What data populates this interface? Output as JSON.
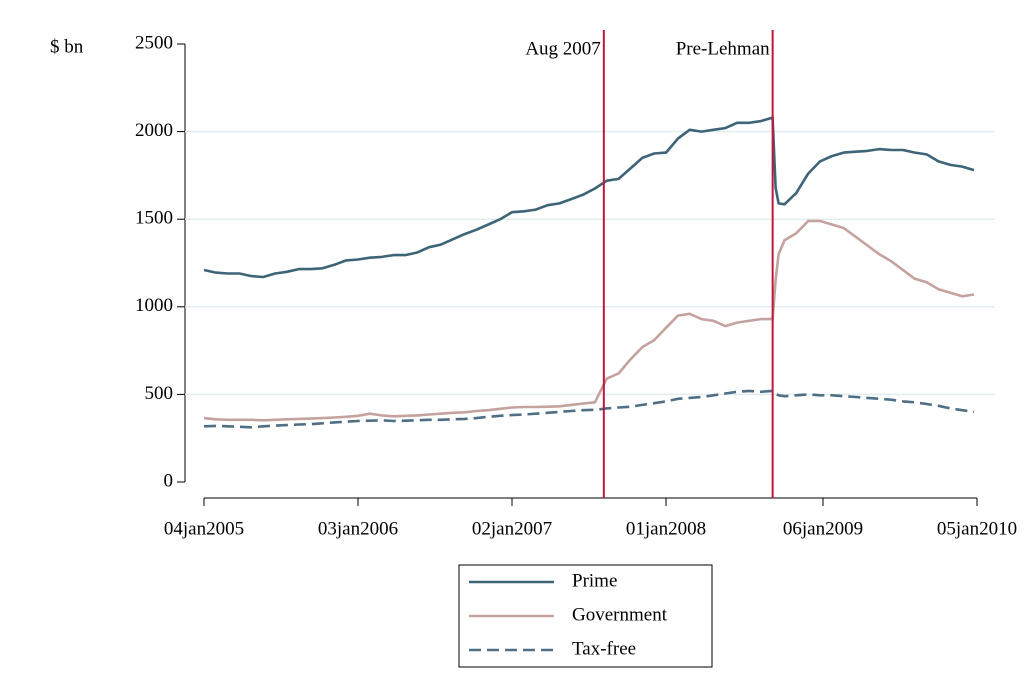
{
  "chart_data": {
    "type": "line",
    "ylabel": "$ bn",
    "x": [
      "2005-01-04",
      "2005-02-01",
      "2005-03-01",
      "2005-03-29",
      "2005-04-26",
      "2005-05-24",
      "2005-06-21",
      "2005-07-19",
      "2005-08-16",
      "2005-09-13",
      "2005-10-11",
      "2005-11-08",
      "2005-12-06",
      "2006-01-03",
      "2006-01-31",
      "2006-02-28",
      "2006-03-28",
      "2006-04-25",
      "2006-05-23",
      "2006-06-20",
      "2006-07-18",
      "2006-08-15",
      "2006-09-12",
      "2006-10-10",
      "2006-11-07",
      "2006-12-05",
      "2007-01-02",
      "2007-01-30",
      "2007-02-27",
      "2007-03-27",
      "2007-04-24",
      "2007-05-22",
      "2007-06-19",
      "2007-07-17",
      "2007-08-14",
      "2007-09-11",
      "2007-10-09",
      "2007-11-06",
      "2007-12-04",
      "2008-01-01",
      "2008-01-29",
      "2008-02-26",
      "2008-03-25",
      "2008-04-22",
      "2008-05-20",
      "2008-06-17",
      "2008-07-15",
      "2008-08-12",
      "2008-09-09",
      "2008-09-16",
      "2008-09-23",
      "2008-10-07",
      "2008-11-04",
      "2008-12-02",
      "2008-12-30",
      "2009-01-27",
      "2009-02-24",
      "2009-03-24",
      "2009-04-21",
      "2009-05-19",
      "2009-06-16",
      "2009-07-14",
      "2009-08-11",
      "2009-09-08",
      "2009-10-06",
      "2009-11-03",
      "2009-12-01",
      "2009-12-29"
    ],
    "series": [
      {
        "name": "Prime",
        "color": "#3e6478",
        "dashed": false,
        "values": [
          1210,
          1195,
          1190,
          1190,
          1175,
          1170,
          1190,
          1200,
          1215,
          1215,
          1220,
          1240,
          1265,
          1270,
          1280,
          1285,
          1295,
          1295,
          1310,
          1340,
          1355,
          1385,
          1415,
          1440,
          1470,
          1500,
          1540,
          1545,
          1555,
          1580,
          1590,
          1615,
          1640,
          1675,
          1720,
          1730,
          1790,
          1850,
          1875,
          1880,
          1960,
          2010,
          2000,
          2010,
          2020,
          2050,
          2050,
          2060,
          2080,
          1680,
          1590,
          1585,
          1650,
          1760,
          1830,
          1860,
          1880,
          1885,
          1890,
          1900,
          1895,
          1895,
          1880,
          1870,
          1830,
          1810,
          1800,
          1780
        ]
      },
      {
        "name": "Government",
        "color": "#c4a29e",
        "dashed": false,
        "values": [
          365,
          358,
          355,
          355,
          355,
          352,
          355,
          358,
          360,
          362,
          365,
          368,
          372,
          378,
          390,
          380,
          375,
          378,
          380,
          385,
          390,
          395,
          398,
          405,
          410,
          418,
          425,
          428,
          428,
          430,
          432,
          440,
          448,
          455,
          590,
          620,
          700,
          770,
          810,
          880,
          950,
          960,
          930,
          920,
          890,
          910,
          920,
          930,
          930,
          1150,
          1300,
          1380,
          1420,
          1490,
          1490,
          1470,
          1450,
          1400,
          1350,
          1300,
          1260,
          1210,
          1160,
          1140,
          1100,
          1080,
          1060,
          1070
        ]
      },
      {
        "name": "Tax-free",
        "color": "#4f6f85",
        "dashed": true,
        "values": [
          318,
          320,
          318,
          315,
          312,
          318,
          322,
          325,
          328,
          330,
          335,
          340,
          345,
          348,
          350,
          352,
          348,
          350,
          352,
          355,
          355,
          358,
          360,
          365,
          372,
          378,
          382,
          385,
          390,
          395,
          400,
          405,
          410,
          412,
          420,
          425,
          430,
          440,
          450,
          460,
          475,
          480,
          485,
          495,
          505,
          515,
          520,
          515,
          520,
          505,
          495,
          490,
          495,
          500,
          495,
          495,
          490,
          485,
          480,
          475,
          470,
          460,
          455,
          445,
          435,
          420,
          410,
          400
        ]
      }
    ],
    "events": [
      {
        "x": "2007-08-07",
        "label": "Aug 2007",
        "color": "#c0163b"
      },
      {
        "x": "2008-09-09",
        "label": "Pre-Lehman",
        "color": "#c0163b"
      }
    ],
    "xlim": [
      "2005-01-04",
      "2010-01-05"
    ],
    "xticks": [
      {
        "value": "2005-01-04",
        "label": "04jan2005"
      },
      {
        "value": "2006-01-03",
        "label": "03jan2006"
      },
      {
        "value": "2007-01-02",
        "label": "02jan2007"
      },
      {
        "value": "2008-01-01",
        "label": "01jan2008"
      },
      {
        "value": "2009-01-06",
        "label": "06jan2009"
      },
      {
        "value": "2010-01-05",
        "label": "05jan2010"
      }
    ],
    "ylim": [
      0,
      2500
    ],
    "yticks": [
      0,
      500,
      1000,
      1500,
      2000,
      2500
    ],
    "grid": true,
    "legend": "bottom"
  }
}
